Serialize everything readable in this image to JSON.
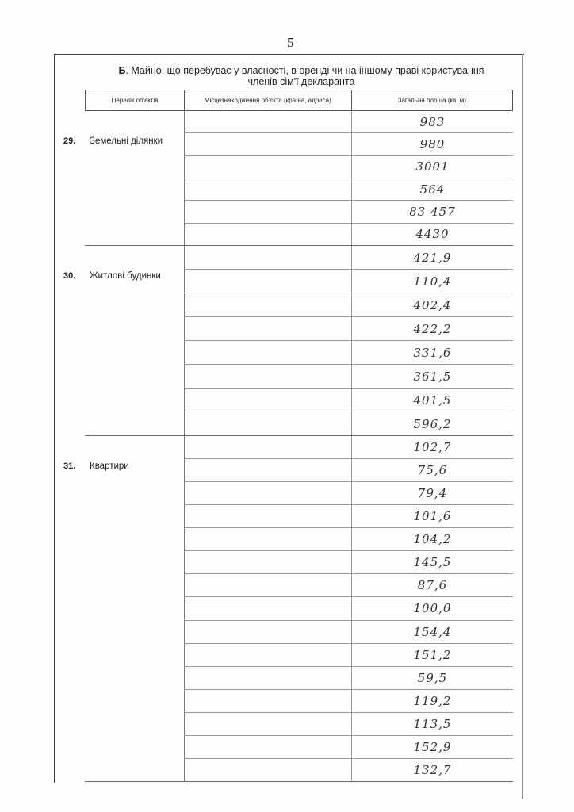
{
  "page_number": "5",
  "section_title": {
    "letter": "Б",
    "line1": ". Майно, що перебуває у власності, в оренді чи на іншому праві користування",
    "line2": "членів сім'ї декларанта"
  },
  "columns": [
    "Перелік об'єктів",
    "Місцезнаходження об'єкта (країна, адреса)",
    "Загальна площа (кв. м)"
  ],
  "sections": [
    {
      "num": "29.",
      "label": "Земельні ділянки",
      "areas": [
        "983",
        "980",
        "3001",
        "564",
        "83 457",
        "4430"
      ]
    },
    {
      "num": "30.",
      "label": "Житлові будинки",
      "areas": [
        "421,9",
        "110,4",
        "402,4",
        "422,2",
        "331,6",
        "361,5",
        "401,5",
        "596,2"
      ]
    },
    {
      "num": "31.",
      "label": "Квартири",
      "areas": [
        "102,7",
        "75,6",
        "79,4",
        "101,6",
        "104,2",
        "145,5",
        "87,6",
        "100,0",
        "154,4",
        "151,2",
        "59,5",
        "119,2",
        "113,5",
        "152,9",
        "132,7"
      ]
    }
  ]
}
